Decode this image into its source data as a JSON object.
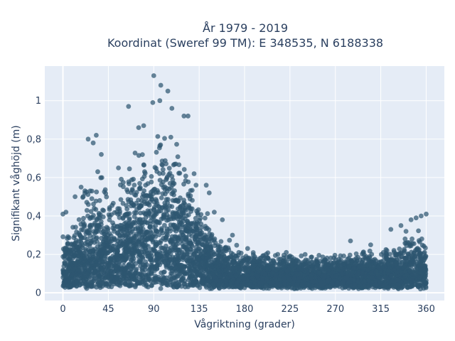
{
  "chart_data": {
    "type": "scatter",
    "title_lines": [
      "År 1979 - 2019",
      "Koordinat (Sweref 99 TM): E 348535, N 6188338"
    ],
    "xlabel": "Vågriktning (grader)",
    "ylabel": "Signifikant våghöjd (m)",
    "xlim": [
      -18,
      378
    ],
    "ylim": [
      -0.04,
      1.18
    ],
    "x_ticks": [
      0,
      45,
      90,
      135,
      180,
      225,
      270,
      315,
      360
    ],
    "x_tick_labels": [
      "0",
      "45",
      "90",
      "135",
      "180",
      "225",
      "270",
      "315",
      "360"
    ],
    "y_ticks": [
      0,
      0.2,
      0.4,
      0.6,
      0.8,
      1
    ],
    "y_tick_labels": [
      "0",
      "0,2",
      "0,4",
      "0,6",
      "0,8",
      "1"
    ],
    "grid": true,
    "legend": "none",
    "marker_color": "#2e5670",
    "background_color": "#e5ecf6",
    "envelope": [
      {
        "x": 0,
        "ymax": 0.38
      },
      {
        "x": 10,
        "ymax": 0.45
      },
      {
        "x": 20,
        "ymax": 0.62
      },
      {
        "x": 30,
        "ymax": 0.8
      },
      {
        "x": 40,
        "ymax": 0.68
      },
      {
        "x": 50,
        "ymax": 0.62
      },
      {
        "x": 60,
        "ymax": 0.72
      },
      {
        "x": 70,
        "ymax": 0.85
      },
      {
        "x": 80,
        "ymax": 0.88
      },
      {
        "x": 90,
        "ymax": 1.0
      },
      {
        "x": 100,
        "ymax": 1.06
      },
      {
        "x": 110,
        "ymax": 0.94
      },
      {
        "x": 120,
        "ymax": 0.88
      },
      {
        "x": 130,
        "ymax": 0.7
      },
      {
        "x": 140,
        "ymax": 0.55
      },
      {
        "x": 150,
        "ymax": 0.38
      },
      {
        "x": 160,
        "ymax": 0.33
      },
      {
        "x": 170,
        "ymax": 0.28
      },
      {
        "x": 180,
        "ymax": 0.27
      },
      {
        "x": 200,
        "ymax": 0.25
      },
      {
        "x": 225,
        "ymax": 0.23
      },
      {
        "x": 250,
        "ymax": 0.22
      },
      {
        "x": 270,
        "ymax": 0.23
      },
      {
        "x": 300,
        "ymax": 0.24
      },
      {
        "x": 320,
        "ymax": 0.27
      },
      {
        "x": 340,
        "ymax": 0.33
      },
      {
        "x": 350,
        "ymax": 0.38
      },
      {
        "x": 360,
        "ymax": 0.41
      }
    ],
    "outliers": [
      {
        "x": 90,
        "y": 1.13
      },
      {
        "x": 97,
        "y": 1.08
      },
      {
        "x": 104,
        "y": 1.05
      },
      {
        "x": 96,
        "y": 1.0
      },
      {
        "x": 89,
        "y": 0.99
      },
      {
        "x": 108,
        "y": 0.96
      },
      {
        "x": 65,
        "y": 0.97
      },
      {
        "x": 120,
        "y": 0.92
      },
      {
        "x": 124,
        "y": 0.92
      },
      {
        "x": 25,
        "y": 0.8
      },
      {
        "x": 33,
        "y": 0.82
      },
      {
        "x": 30,
        "y": 0.78
      },
      {
        "x": 75,
        "y": 0.86
      },
      {
        "x": 38,
        "y": 0.72
      },
      {
        "x": 130,
        "y": 0.62
      },
      {
        "x": 142,
        "y": 0.56
      },
      {
        "x": 145,
        "y": 0.52
      },
      {
        "x": 150,
        "y": 0.42
      },
      {
        "x": 158,
        "y": 0.38
      },
      {
        "x": 168,
        "y": 0.3
      },
      {
        "x": 240,
        "y": 0.2
      },
      {
        "x": 285,
        "y": 0.27
      },
      {
        "x": 305,
        "y": 0.25
      },
      {
        "x": 325,
        "y": 0.33
      },
      {
        "x": 335,
        "y": 0.35
      },
      {
        "x": 340,
        "y": 0.32
      },
      {
        "x": 345,
        "y": 0.38
      },
      {
        "x": 350,
        "y": 0.39
      },
      {
        "x": 355,
        "y": 0.4
      },
      {
        "x": 360,
        "y": 0.41
      },
      {
        "x": 0,
        "y": 0.41
      },
      {
        "x": 3,
        "y": 0.42
      },
      {
        "x": 12,
        "y": 0.5
      },
      {
        "x": 18,
        "y": 0.55
      },
      {
        "x": 55,
        "y": 0.65
      },
      {
        "x": 80,
        "y": 0.87
      }
    ]
  }
}
